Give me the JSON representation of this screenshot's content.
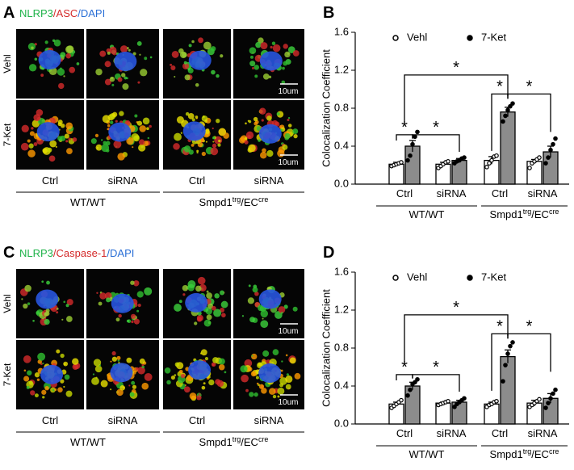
{
  "panels": [
    {
      "letter": "A",
      "stain": [
        {
          "text": "NLRP3",
          "color": "#1fb34a"
        },
        {
          "text": "/ASC",
          "color": "#d42a2a"
        },
        {
          "text": "/DAPI",
          "color": "#2a6fd6"
        }
      ],
      "rows": [
        "Vehl",
        "7-Ket"
      ],
      "scale_bar": "10um",
      "columns": [
        "Ctrl",
        "siRNA",
        "Ctrl",
        "siRNA"
      ],
      "groups": [
        [
          "WT/WT"
        ],
        [
          "Smpd1",
          "trg",
          "/EC",
          "cre"
        ]
      ]
    },
    {
      "letter": "C",
      "stain": [
        {
          "text": "NLRP3",
          "color": "#1fb34a"
        },
        {
          "text": "/Caspase-1",
          "color": "#d42a2a"
        },
        {
          "text": "/DAPI",
          "color": "#2a6fd6"
        }
      ],
      "rows": [
        "Vehl",
        "7-Ket"
      ],
      "scale_bar": "10um",
      "columns": [
        "Ctrl",
        "siRNA",
        "Ctrl",
        "siRNA"
      ],
      "groups": [
        [
          "WT/WT"
        ],
        [
          "Smpd1",
          "trg",
          "/EC",
          "cre"
        ]
      ]
    }
  ],
  "chart_data": [
    {
      "type": "bar",
      "letter": "B",
      "y_label": "Colocalization Coefficient",
      "categories": [
        "Ctrl",
        "siRNA",
        "Ctrl",
        "siRNA"
      ],
      "groups": [
        [
          "WT/WT"
        ],
        [
          "Smpd1",
          "trg",
          "/EC",
          "cre"
        ]
      ],
      "ylim": [
        0,
        1.6
      ],
      "yticks": [
        {
          "value": 0,
          "label": "0.0"
        },
        0.4,
        0.8,
        1.2,
        1.6
      ],
      "series": [
        {
          "name": "Vehl",
          "color": "#ffffff",
          "point_style": "open",
          "values": [
            0.21,
            0.21,
            0.25,
            0.24
          ],
          "errors": [
            0.02,
            0.02,
            0.04,
            0.02
          ],
          "points": [
            [
              0.19,
              0.2,
              0.21,
              0.22,
              0.23
            ],
            [
              0.17,
              0.19,
              0.21,
              0.23,
              0.24
            ],
            [
              0.18,
              0.22,
              0.25,
              0.29,
              0.3
            ],
            [
              0.17,
              0.22,
              0.24,
              0.26,
              0.28
            ]
          ]
        },
        {
          "name": "7-Ket",
          "color": "#8c8c8c",
          "point_style": "filled",
          "values": [
            0.4,
            0.25,
            0.76,
            0.34
          ],
          "errors": [
            0.06,
            0.02,
            0.05,
            0.06
          ],
          "points": [
            [
              0.25,
              0.3,
              0.42,
              0.5,
              0.55
            ],
            [
              0.22,
              0.24,
              0.25,
              0.27,
              0.28
            ],
            [
              0.66,
              0.72,
              0.78,
              0.82,
              0.85
            ],
            [
              0.22,
              0.28,
              0.36,
              0.42,
              0.48
            ]
          ]
        }
      ],
      "annotations": [
        "*",
        "*",
        "*",
        "*",
        "*"
      ]
    },
    {
      "type": "bar",
      "letter": "D",
      "y_label": "Colocalization Coefficient",
      "categories": [
        "Ctrl",
        "siRNA",
        "Ctrl",
        "siRNA"
      ],
      "groups": [
        [
          "WT/WT"
        ],
        [
          "Smpd1",
          "trg",
          "/EC",
          "cre"
        ]
      ],
      "ylim": [
        0,
        1.6
      ],
      "yticks": [
        {
          "value": 0,
          "label": "0.0"
        },
        0.4,
        0.8,
        1.2,
        1.6
      ],
      "series": [
        {
          "name": "Vehl",
          "color": "#ffffff",
          "point_style": "open",
          "values": [
            0.21,
            0.22,
            0.21,
            0.22
          ],
          "errors": [
            0.02,
            0.01,
            0.02,
            0.03
          ],
          "points": [
            [
              0.17,
              0.19,
              0.21,
              0.23,
              0.25
            ],
            [
              0.2,
              0.21,
              0.22,
              0.23,
              0.24
            ],
            [
              0.18,
              0.2,
              0.21,
              0.23,
              0.24
            ],
            [
              0.18,
              0.2,
              0.22,
              0.24,
              0.26
            ]
          ]
        },
        {
          "name": "7-Ket",
          "color": "#8c8c8c",
          "point_style": "filled",
          "values": [
            0.4,
            0.23,
            0.71,
            0.27
          ],
          "errors": [
            0.04,
            0.02,
            0.07,
            0.05
          ],
          "points": [
            [
              0.3,
              0.36,
              0.42,
              0.44,
              0.47
            ],
            [
              0.18,
              0.21,
              0.23,
              0.25,
              0.27
            ],
            [
              0.45,
              0.62,
              0.74,
              0.82,
              0.86
            ],
            [
              0.17,
              0.22,
              0.27,
              0.32,
              0.36
            ]
          ]
        }
      ],
      "annotations": [
        "*",
        "*",
        "*",
        "*",
        "*"
      ]
    }
  ]
}
